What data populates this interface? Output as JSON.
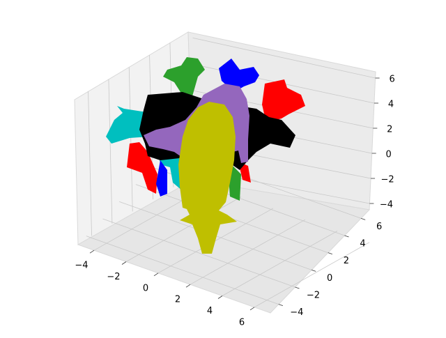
{
  "chart_data": {
    "type": "3d-mesh-plot",
    "axes": {
      "x": {
        "range": [
          -5,
          7
        ],
        "ticks": [
          -4,
          -2,
          0,
          2,
          4,
          6
        ],
        "tick_labels": [
          "−4",
          "−2",
          "0",
          "2",
          "4",
          "6"
        ]
      },
      "y": {
        "range": [
          -5,
          7
        ],
        "ticks": [
          -4,
          -2,
          0,
          2,
          4,
          6
        ],
        "tick_labels": [
          "−4",
          "−2",
          "0",
          "2",
          "4",
          "6"
        ]
      },
      "z": {
        "range": [
          -4.5,
          6.5
        ],
        "ticks": [
          -4,
          -2,
          0,
          2,
          4,
          6
        ],
        "tick_labels": [
          "−4",
          "−2",
          "0",
          "2",
          "4",
          "6"
        ]
      }
    },
    "grid": true,
    "legend": "none",
    "series": [
      {
        "color": "#008b8b",
        "hex": "#00bfbf"
      },
      {
        "color": "#ff0000",
        "hex": "#ff0000"
      },
      {
        "color": "#0000ff",
        "hex": "#0000ff"
      },
      {
        "color": "#2ca02c",
        "hex": "#2ca02c"
      },
      {
        "color": "#000000",
        "hex": "#000000"
      },
      {
        "color": "#9467bd",
        "hex": "#9467bd"
      },
      {
        "color": "#bfbf00",
        "hex": "#bfbf00"
      }
    ],
    "object_icon": "cow-silhouette"
  }
}
